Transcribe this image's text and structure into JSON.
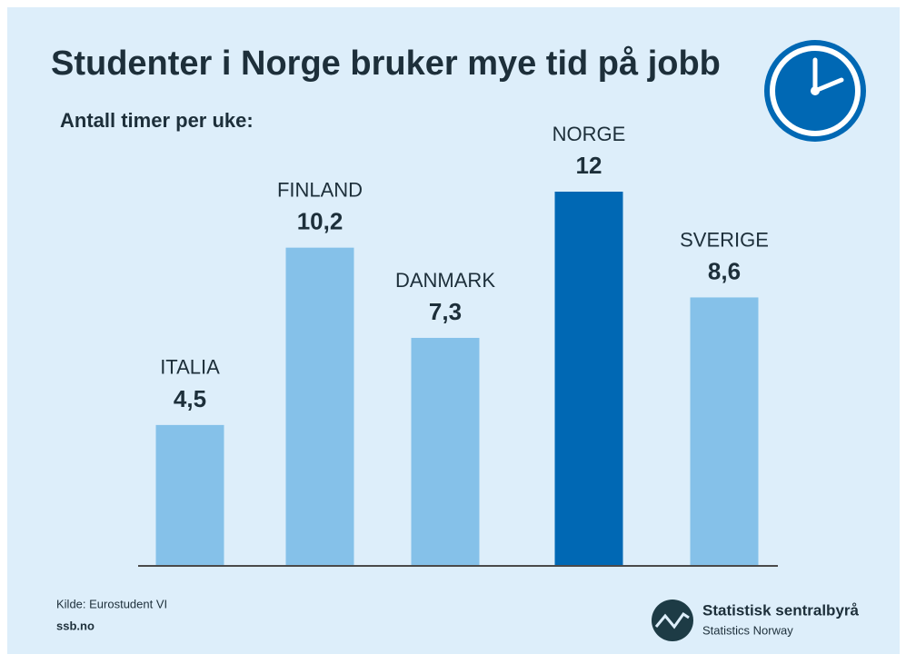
{
  "chart_data": {
    "type": "bar",
    "title": "Studenter i Norge bruker mye tid på jobb",
    "subtitle": "Antall timer per uke:",
    "categories": [
      "ITALIA",
      "FINLAND",
      "DANMARK",
      "NORGE",
      "SVERIGE"
    ],
    "values": [
      4.5,
      10.2,
      7.3,
      12,
      8.6
    ],
    "value_labels": [
      "4,5",
      "10,2",
      "7,3",
      "12",
      "8,6"
    ],
    "colors": [
      "#85c1e9",
      "#85c1e9",
      "#85c1e9",
      "#0068b4",
      "#85c1e9"
    ],
    "source": "Kilde: Eurostudent VI",
    "website": "ssb.no",
    "logo": {
      "name": "Statistisk sentralbyrå",
      "subname": "Statistics Norway"
    }
  }
}
